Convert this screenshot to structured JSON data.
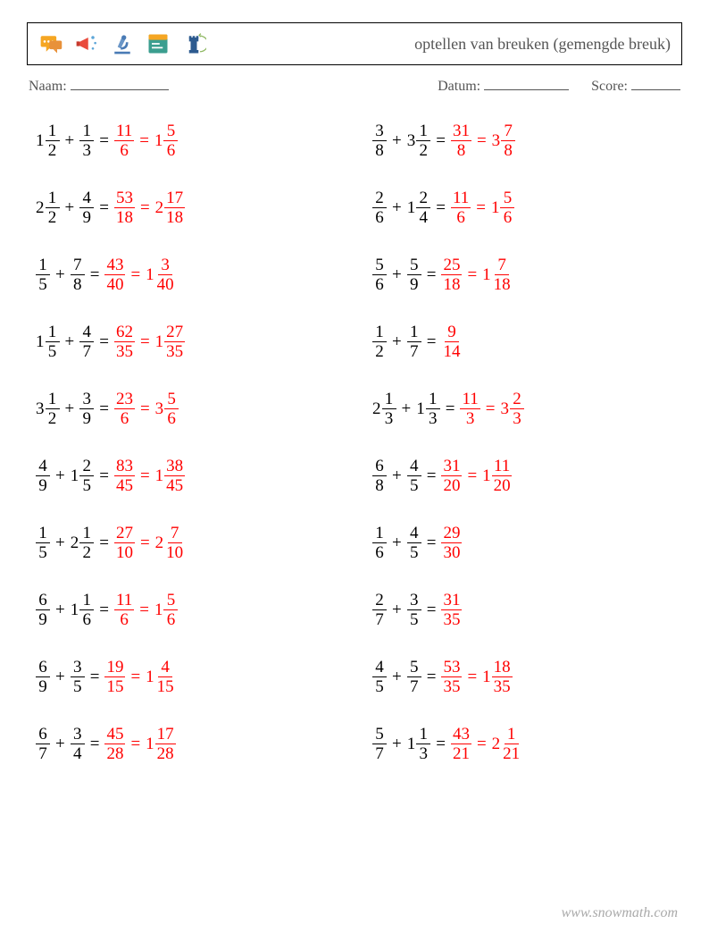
{
  "title": "optellen van breuken (gemengde breuk)",
  "meta": {
    "name_label": "Naam:",
    "date_label": "Datum:",
    "score_label": "Score:",
    "name_blank_width": 110,
    "date_blank_width": 95,
    "score_blank_width": 55
  },
  "colors": {
    "text": "#000000",
    "answer": "#ff0000",
    "meta_text": "#555555",
    "border": "#000000",
    "footer": "#aaaaaa",
    "background": "#ffffff"
  },
  "fontsize": {
    "title": 18,
    "meta": 16,
    "problem": 19,
    "footer": 16
  },
  "icons": [
    {
      "name": "chat-icon",
      "fill": "#f5a623",
      "shape": "chat"
    },
    {
      "name": "megaphone-icon",
      "fill": "#e94b3c",
      "shape": "megaphone"
    },
    {
      "name": "microscope-icon",
      "fill": "#4a7bb5",
      "shape": "microscope"
    },
    {
      "name": "terminal-icon",
      "fill": "#3b9e8f",
      "shape": "terminal"
    },
    {
      "name": "chess-icon",
      "fill": "#2c5a8f",
      "shape": "chess"
    }
  ],
  "problems": [
    {
      "left": [
        {
          "t": [
            {
              "w": "1",
              "n": "1",
              "d": "2"
            },
            "+",
            {
              "n": "1",
              "d": "3"
            }
          ],
          "a": [
            {
              "n": "11",
              "d": "6"
            },
            {
              "w": "1",
              "n": "5",
              "d": "6"
            }
          ]
        }
      ],
      "right": [
        {
          "t": [
            {
              "n": "3",
              "d": "8"
            },
            "+",
            {
              "w": "3",
              "n": "1",
              "d": "2"
            }
          ],
          "a": [
            {
              "n": "31",
              "d": "8"
            },
            {
              "w": "3",
              "n": "7",
              "d": "8"
            }
          ]
        }
      ]
    },
    {
      "left": [
        {
          "t": [
            {
              "w": "2",
              "n": "1",
              "d": "2"
            },
            "+",
            {
              "n": "4",
              "d": "9"
            }
          ],
          "a": [
            {
              "n": "53",
              "d": "18"
            },
            {
              "w": "2",
              "n": "17",
              "d": "18"
            }
          ]
        }
      ],
      "right": [
        {
          "t": [
            {
              "n": "2",
              "d": "6"
            },
            "+",
            {
              "w": "1",
              "n": "2",
              "d": "4"
            }
          ],
          "a": [
            {
              "n": "11",
              "d": "6"
            },
            {
              "w": "1",
              "n": "5",
              "d": "6"
            }
          ]
        }
      ]
    },
    {
      "left": [
        {
          "t": [
            {
              "n": "1",
              "d": "5"
            },
            "+",
            {
              "n": "7",
              "d": "8"
            }
          ],
          "a": [
            {
              "n": "43",
              "d": "40"
            },
            {
              "w": "1",
              "n": "3",
              "d": "40"
            }
          ]
        }
      ],
      "right": [
        {
          "t": [
            {
              "n": "5",
              "d": "6"
            },
            "+",
            {
              "n": "5",
              "d": "9"
            }
          ],
          "a": [
            {
              "n": "25",
              "d": "18"
            },
            {
              "w": "1",
              "n": "7",
              "d": "18"
            }
          ]
        }
      ]
    },
    {
      "left": [
        {
          "t": [
            {
              "w": "1",
              "n": "1",
              "d": "5"
            },
            "+",
            {
              "n": "4",
              "d": "7"
            }
          ],
          "a": [
            {
              "n": "62",
              "d": "35"
            },
            {
              "w": "1",
              "n": "27",
              "d": "35"
            }
          ]
        }
      ],
      "right": [
        {
          "t": [
            {
              "n": "1",
              "d": "2"
            },
            "+",
            {
              "n": "1",
              "d": "7"
            }
          ],
          "a": [
            {
              "n": "9",
              "d": "14"
            }
          ]
        }
      ]
    },
    {
      "left": [
        {
          "t": [
            {
              "w": "3",
              "n": "1",
              "d": "2"
            },
            "+",
            {
              "n": "3",
              "d": "9"
            }
          ],
          "a": [
            {
              "n": "23",
              "d": "6"
            },
            {
              "w": "3",
              "n": "5",
              "d": "6"
            }
          ]
        }
      ],
      "right": [
        {
          "t": [
            {
              "w": "2",
              "n": "1",
              "d": "3"
            },
            "+",
            {
              "w": "1",
              "n": "1",
              "d": "3"
            }
          ],
          "a": [
            {
              "n": "11",
              "d": "3"
            },
            {
              "w": "3",
              "n": "2",
              "d": "3"
            }
          ]
        }
      ]
    },
    {
      "left": [
        {
          "t": [
            {
              "n": "4",
              "d": "9"
            },
            "+",
            {
              "w": "1",
              "n": "2",
              "d": "5"
            }
          ],
          "a": [
            {
              "n": "83",
              "d": "45"
            },
            {
              "w": "1",
              "n": "38",
              "d": "45"
            }
          ]
        }
      ],
      "right": [
        {
          "t": [
            {
              "n": "6",
              "d": "8"
            },
            "+",
            {
              "n": "4",
              "d": "5"
            }
          ],
          "a": [
            {
              "n": "31",
              "d": "20"
            },
            {
              "w": "1",
              "n": "11",
              "d": "20"
            }
          ]
        }
      ]
    },
    {
      "left": [
        {
          "t": [
            {
              "n": "1",
              "d": "5"
            },
            "+",
            {
              "w": "2",
              "n": "1",
              "d": "2"
            }
          ],
          "a": [
            {
              "n": "27",
              "d": "10"
            },
            {
              "w": "2",
              "n": "7",
              "d": "10"
            }
          ]
        }
      ],
      "right": [
        {
          "t": [
            {
              "n": "1",
              "d": "6"
            },
            "+",
            {
              "n": "4",
              "d": "5"
            }
          ],
          "a": [
            {
              "n": "29",
              "d": "30"
            }
          ]
        }
      ]
    },
    {
      "left": [
        {
          "t": [
            {
              "n": "6",
              "d": "9"
            },
            "+",
            {
              "w": "1",
              "n": "1",
              "d": "6"
            }
          ],
          "a": [
            {
              "n": "11",
              "d": "6"
            },
            {
              "w": "1",
              "n": "5",
              "d": "6"
            }
          ]
        }
      ],
      "right": [
        {
          "t": [
            {
              "n": "2",
              "d": "7"
            },
            "+",
            {
              "n": "3",
              "d": "5"
            }
          ],
          "a": [
            {
              "n": "31",
              "d": "35"
            }
          ]
        }
      ]
    },
    {
      "left": [
        {
          "t": [
            {
              "n": "6",
              "d": "9"
            },
            "+",
            {
              "n": "3",
              "d": "5"
            }
          ],
          "a": [
            {
              "n": "19",
              "d": "15"
            },
            {
              "w": "1",
              "n": "4",
              "d": "15"
            }
          ]
        }
      ],
      "right": [
        {
          "t": [
            {
              "n": "4",
              "d": "5"
            },
            "+",
            {
              "n": "5",
              "d": "7"
            }
          ],
          "a": [
            {
              "n": "53",
              "d": "35"
            },
            {
              "w": "1",
              "n": "18",
              "d": "35"
            }
          ]
        }
      ]
    },
    {
      "left": [
        {
          "t": [
            {
              "n": "6",
              "d": "7"
            },
            "+",
            {
              "n": "3",
              "d": "4"
            }
          ],
          "a": [
            {
              "n": "45",
              "d": "28"
            },
            {
              "w": "1",
              "n": "17",
              "d": "28"
            }
          ]
        }
      ],
      "right": [
        {
          "t": [
            {
              "n": "5",
              "d": "7"
            },
            "+",
            {
              "w": "1",
              "n": "1",
              "d": "3"
            }
          ],
          "a": [
            {
              "n": "43",
              "d": "21"
            },
            {
              "w": "2",
              "n": "1",
              "d": "21"
            }
          ]
        }
      ]
    }
  ],
  "footer": "www.snowmath.com"
}
